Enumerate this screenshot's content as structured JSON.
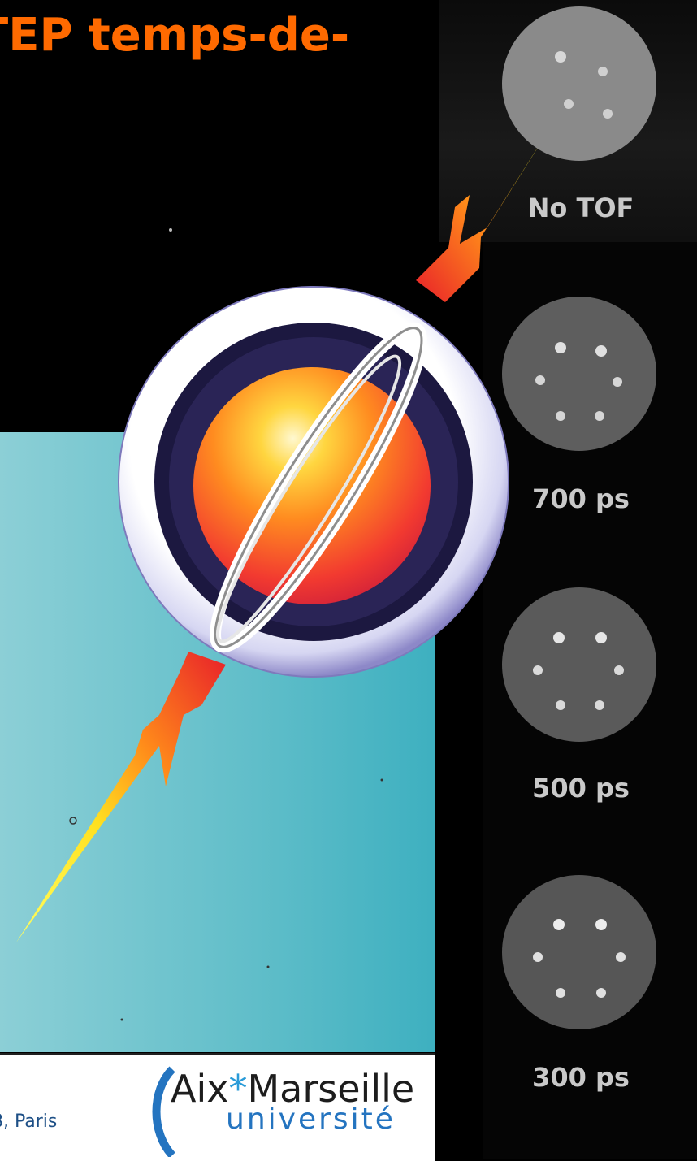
{
  "slide": {
    "title": "TEP temps-de-",
    "footer_text": "8, Paris"
  },
  "logo": {
    "line1_a": "Aix",
    "line1_star": "*",
    "line1_b": "Marseille",
    "line2": "université"
  },
  "reconstructions": [
    {
      "label": "No TOF"
    },
    {
      "label": "700 ps"
    },
    {
      "label": "500 ps"
    },
    {
      "label": "300 ps"
    }
  ],
  "colors": {
    "title": "#ff6a00",
    "panel": "#63bfca",
    "logo_blue": "#2474c0"
  }
}
